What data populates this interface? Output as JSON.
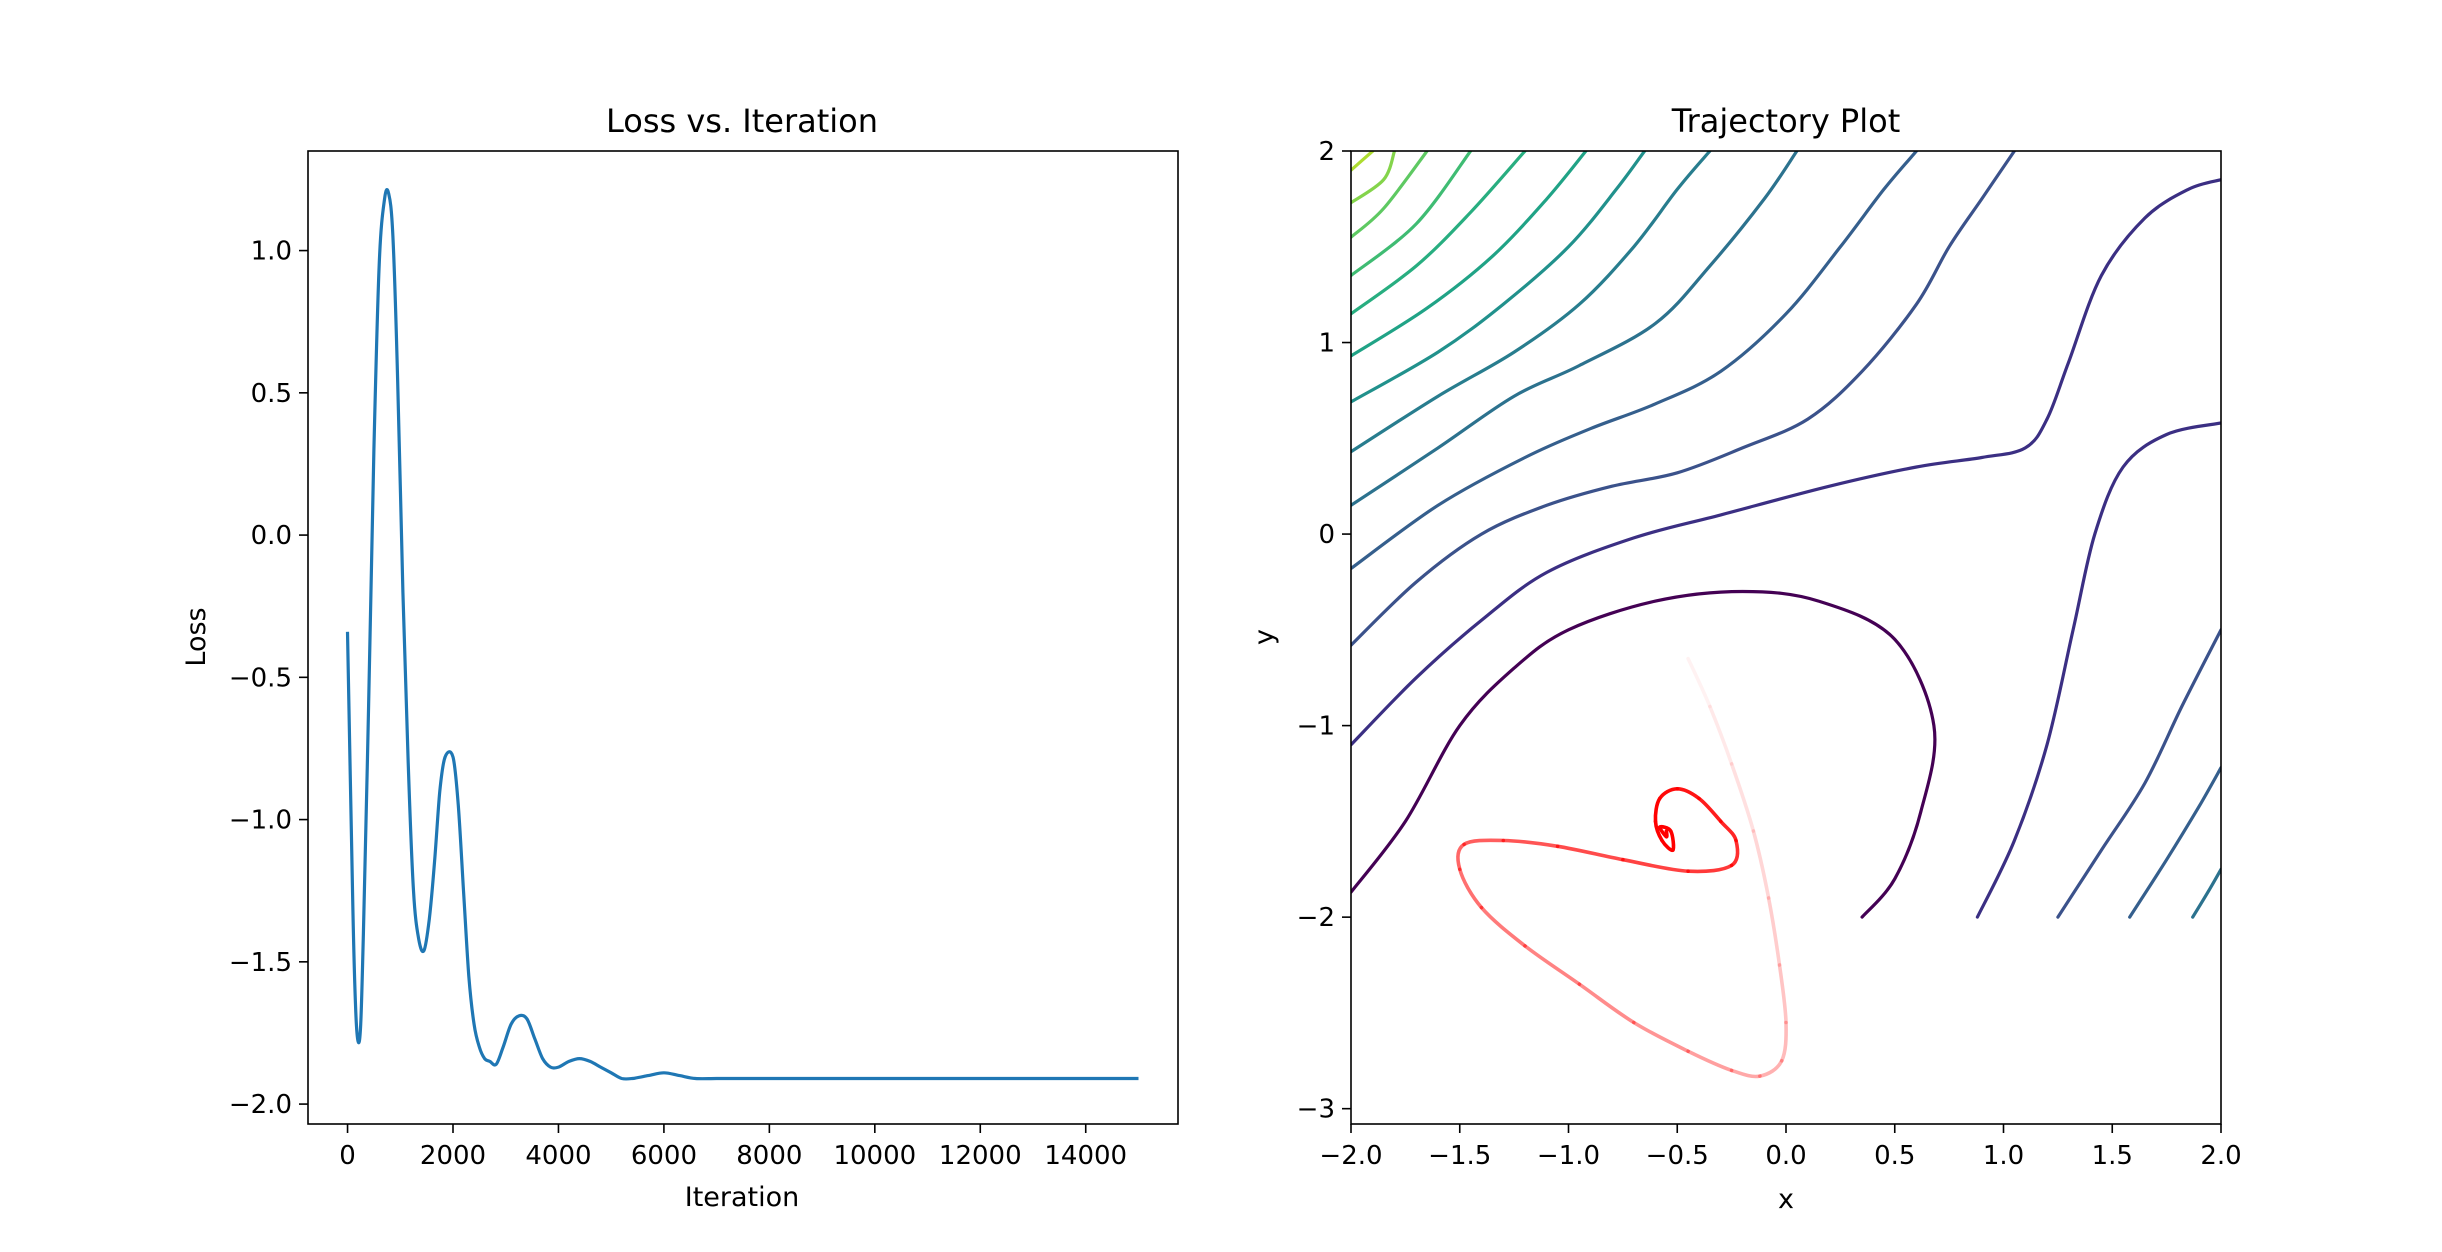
{
  "chart_data": [
    {
      "type": "line",
      "title": "Loss vs. Iteration",
      "xlabel": "Iteration",
      "ylabel": "Loss",
      "xlim": [
        -750,
        15750
      ],
      "ylim": [
        -2.07,
        1.35
      ],
      "xticks": [
        0,
        2000,
        4000,
        6000,
        8000,
        10000,
        12000,
        14000
      ],
      "xtick_labels": [
        "0",
        "2000",
        "4000",
        "6000",
        "8000",
        "10000",
        "12000",
        "14000"
      ],
      "yticks": [
        -2.0,
        -1.5,
        -1.0,
        -0.5,
        0.0,
        0.5,
        1.0
      ],
      "ytick_labels": [
        "−2.0",
        "−1.5",
        "−1.0",
        "−0.5",
        "0.0",
        "0.5",
        "1.0"
      ],
      "grid": false,
      "color": "#1f77b4",
      "series": [
        {
          "x": [
            0,
            100,
            150,
            200,
            250,
            300,
            400,
            500,
            600,
            700,
            780,
            860,
            950,
            1050,
            1150,
            1250,
            1350,
            1450,
            1550,
            1650,
            1750,
            1850,
            2000,
            2100,
            2200,
            2300,
            2400,
            2500,
            2600,
            2700,
            2820,
            2950,
            3100,
            3250,
            3400,
            3550,
            3700,
            3850,
            4000,
            4200,
            4400,
            4600,
            4800,
            5000,
            5200,
            5400,
            5700,
            6000,
            6300,
            6600,
            7000,
            7500,
            8000,
            9000,
            10000,
            12000,
            15000
          ],
          "y": [
            -0.34,
            -1.3,
            -1.65,
            -1.78,
            -1.72,
            -1.4,
            -0.6,
            0.3,
            0.95,
            1.18,
            1.2,
            1.05,
            0.55,
            -0.2,
            -0.8,
            -1.25,
            -1.42,
            -1.46,
            -1.35,
            -1.15,
            -0.9,
            -0.78,
            -0.78,
            -0.95,
            -1.25,
            -1.55,
            -1.72,
            -1.8,
            -1.84,
            -1.85,
            -1.86,
            -1.8,
            -1.72,
            -1.69,
            -1.7,
            -1.77,
            -1.84,
            -1.87,
            -1.87,
            -1.85,
            -1.84,
            -1.85,
            -1.87,
            -1.89,
            -1.91,
            -1.91,
            -1.9,
            -1.89,
            -1.9,
            -1.91,
            -1.91,
            -1.91,
            -1.91,
            -1.91,
            -1.91,
            -1.91,
            -1.91
          ]
        }
      ]
    },
    {
      "type": "line",
      "title": "Trajectory Plot",
      "xlabel": "x",
      "ylabel": "y",
      "xlim": [
        -2.0,
        2.0
      ],
      "ylim": [
        -3.08,
        2.0
      ],
      "xticks": [
        -2.0,
        -1.5,
        -1.0,
        -0.5,
        0.0,
        0.5,
        1.0,
        1.5,
        2.0
      ],
      "xtick_labels": [
        "−2.0",
        "−1.5",
        "−1.0",
        "−0.5",
        "0.0",
        "0.5",
        "1.0",
        "1.5",
        "2.0"
      ],
      "yticks": [
        -3,
        -2,
        -1,
        0,
        1,
        2
      ],
      "ytick_labels": [
        "−3",
        "−2",
        "−1",
        "0",
        "1",
        "2"
      ],
      "grid": false,
      "contours": [
        {
          "color": "#440154",
          "points": [
            [
              -2.0,
              -1.87
            ],
            [
              -1.75,
              -1.5
            ],
            [
              -1.5,
              -1.0
            ],
            [
              -1.25,
              -0.7
            ],
            [
              -1.0,
              -0.5
            ],
            [
              -0.6,
              -0.35
            ],
            [
              -0.2,
              -0.3
            ],
            [
              0.15,
              -0.35
            ],
            [
              0.5,
              -0.55
            ],
            [
              0.68,
              -1.0
            ],
            [
              0.62,
              -1.45
            ],
            [
              0.5,
              -1.8
            ],
            [
              0.35,
              -2.0
            ]
          ]
        },
        {
          "color": "#3b2f83",
          "points": [
            [
              -2.0,
              -1.1
            ],
            [
              -1.7,
              -0.75
            ],
            [
              -1.4,
              -0.45
            ],
            [
              -1.1,
              -0.2
            ],
            [
              -0.7,
              -0.02
            ],
            [
              -0.3,
              0.1
            ],
            [
              0.2,
              0.25
            ],
            [
              0.6,
              0.35
            ],
            [
              0.9,
              0.4
            ],
            [
              1.1,
              0.45
            ],
            [
              1.2,
              0.6
            ],
            [
              1.3,
              0.9
            ],
            [
              1.45,
              1.35
            ],
            [
              1.65,
              1.65
            ],
            [
              1.85,
              1.8
            ],
            [
              2.0,
              1.85
            ]
          ]
        },
        {
          "color": "#3b2f83",
          "points": [
            [
              0.88,
              -2.0
            ],
            [
              1.05,
              -1.6
            ],
            [
              1.2,
              -1.1
            ],
            [
              1.32,
              -0.5
            ],
            [
              1.42,
              0.0
            ],
            [
              1.55,
              0.35
            ],
            [
              1.75,
              0.52
            ],
            [
              2.0,
              0.58
            ]
          ]
        },
        {
          "color": "#3b528b",
          "points": [
            [
              -2.0,
              -0.58
            ],
            [
              -1.7,
              -0.25
            ],
            [
              -1.4,
              0.0
            ],
            [
              -1.1,
              0.15
            ],
            [
              -0.8,
              0.25
            ],
            [
              -0.5,
              0.32
            ],
            [
              -0.2,
              0.45
            ],
            [
              0.1,
              0.6
            ],
            [
              0.35,
              0.85
            ],
            [
              0.6,
              1.2
            ],
            [
              0.75,
              1.5
            ],
            [
              0.9,
              1.75
            ],
            [
              1.05,
              2.0
            ]
          ]
        },
        {
          "color": "#3b528b",
          "points": [
            [
              1.25,
              -2.0
            ],
            [
              1.45,
              -1.65
            ],
            [
              1.65,
              -1.3
            ],
            [
              1.82,
              -0.9
            ],
            [
              2.0,
              -0.5
            ]
          ]
        },
        {
          "color": "#355f8d",
          "points": [
            [
              -2.0,
              -0.18
            ],
            [
              -1.6,
              0.15
            ],
            [
              -1.2,
              0.4
            ],
            [
              -0.9,
              0.55
            ],
            [
              -0.6,
              0.68
            ],
            [
              -0.3,
              0.85
            ],
            [
              0.0,
              1.15
            ],
            [
              0.25,
              1.5
            ],
            [
              0.45,
              1.8
            ],
            [
              0.6,
              2.0
            ]
          ]
        },
        {
          "color": "#355f8d",
          "points": [
            [
              1.58,
              -2.0
            ],
            [
              1.75,
              -1.7
            ],
            [
              1.9,
              -1.42
            ],
            [
              2.0,
              -1.22
            ]
          ]
        },
        {
          "color": "#2c728e",
          "points": [
            [
              -2.0,
              0.15
            ],
            [
              -1.6,
              0.45
            ],
            [
              -1.25,
              0.72
            ],
            [
              -0.95,
              0.88
            ],
            [
              -0.6,
              1.1
            ],
            [
              -0.35,
              1.4
            ],
            [
              -0.1,
              1.75
            ],
            [
              0.05,
              2.0
            ]
          ]
        },
        {
          "color": "#2c728e",
          "points": [
            [
              1.87,
              -2.0
            ],
            [
              1.95,
              -1.85
            ],
            [
              2.0,
              -1.75
            ]
          ]
        },
        {
          "color": "#287d8e",
          "points": [
            [
              -2.0,
              0.43
            ],
            [
              -1.6,
              0.72
            ],
            [
              -1.25,
              0.95
            ],
            [
              -0.95,
              1.2
            ],
            [
              -0.7,
              1.5
            ],
            [
              -0.5,
              1.8
            ],
            [
              -0.35,
              2.0
            ]
          ]
        },
        {
          "color": "#21918c",
          "points": [
            [
              -2.0,
              0.69
            ],
            [
              -1.6,
              0.95
            ],
            [
              -1.3,
              1.2
            ],
            [
              -1.0,
              1.5
            ],
            [
              -0.78,
              1.8
            ],
            [
              -0.65,
              2.0
            ]
          ]
        },
        {
          "color": "#20a386",
          "points": [
            [
              -2.0,
              0.93
            ],
            [
              -1.65,
              1.18
            ],
            [
              -1.35,
              1.45
            ],
            [
              -1.1,
              1.75
            ],
            [
              -0.92,
              2.0
            ]
          ]
        },
        {
          "color": "#28ae80",
          "points": [
            [
              -2.0,
              1.15
            ],
            [
              -1.7,
              1.4
            ],
            [
              -1.45,
              1.68
            ],
            [
              -1.2,
              2.0
            ]
          ]
        },
        {
          "color": "#3fbc73",
          "points": [
            [
              -2.0,
              1.35
            ],
            [
              -1.7,
              1.62
            ],
            [
              -1.45,
              2.0
            ]
          ]
        },
        {
          "color": "#5ec962",
          "points": [
            [
              -2.0,
              1.55
            ],
            [
              -1.85,
              1.7
            ],
            [
              -1.65,
              2.0
            ]
          ]
        },
        {
          "color": "#84d44b",
          "points": [
            [
              -2.0,
              1.73
            ],
            [
              -1.85,
              1.85
            ],
            [
              -1.8,
              2.0
            ]
          ]
        },
        {
          "color": "#addc30",
          "points": [
            [
              -2.0,
              1.9
            ],
            [
              -1.9,
              2.0
            ]
          ]
        }
      ],
      "trajectory": {
        "color": "#ff0000",
        "x": [
          -0.45,
          -0.35,
          -0.25,
          -0.15,
          -0.08,
          -0.03,
          0.0,
          -0.02,
          -0.12,
          -0.25,
          -0.45,
          -0.7,
          -0.95,
          -1.2,
          -1.4,
          -1.5,
          -1.48,
          -1.3,
          -1.05,
          -0.75,
          -0.45,
          -0.25,
          -0.23,
          -0.3,
          -0.4,
          -0.5,
          -0.58,
          -0.6,
          -0.57,
          -0.52,
          -0.53,
          -0.58,
          -0.55,
          -0.55
        ],
        "y": [
          -0.65,
          -0.9,
          -1.2,
          -1.55,
          -1.9,
          -2.25,
          -2.55,
          -2.75,
          -2.83,
          -2.8,
          -2.7,
          -2.55,
          -2.35,
          -2.15,
          -1.95,
          -1.75,
          -1.62,
          -1.6,
          -1.63,
          -1.7,
          -1.76,
          -1.73,
          -1.6,
          -1.5,
          -1.38,
          -1.33,
          -1.38,
          -1.5,
          -1.6,
          -1.65,
          -1.55,
          -1.53,
          -1.58,
          -1.55
        ]
      }
    }
  ]
}
